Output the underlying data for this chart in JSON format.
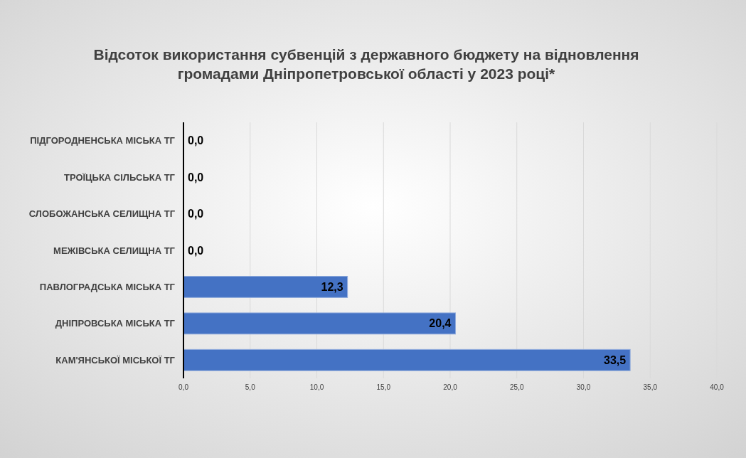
{
  "chart_data": {
    "type": "bar",
    "orientation": "horizontal",
    "title": "Відсоток використання субвенцій з державного бюджету на відновлення громадами Дніпропетровської області у 2023 році*",
    "categories": [
      "ПІДГОРОДНЕНСЬКА МІСЬКА ТГ",
      "ТРОЇЦЬКА СІЛЬСЬКА ТГ",
      "СЛОБОЖАНСЬКА СЕЛИЩНА ТГ",
      "МЕЖІВСЬКА СЕЛИЩНА ТГ",
      "ПАВЛОГРАДСЬКА МІСЬКА ТГ",
      "ДНІПРОВСЬКА МІСЬКА ТГ",
      "КАМ'ЯНСЬКОЇ МІСЬКОЇ ТГ"
    ],
    "values": [
      0,
      0,
      0,
      0,
      12.3,
      20.4,
      33.5
    ],
    "value_labels": [
      "0,0",
      "0,0",
      "0,0",
      "0,0",
      "12,3",
      "20,4",
      "33,5"
    ],
    "color": "#4472c4",
    "xlim": [
      0,
      40
    ],
    "xticks": [
      {
        "value": 0,
        "label": "0,0"
      },
      {
        "value": 5,
        "label": "5,0"
      },
      {
        "value": 10,
        "label": "10,0"
      },
      {
        "value": 15,
        "label": "15,0"
      },
      {
        "value": 20,
        "label": "20,0"
      },
      {
        "value": 25,
        "label": "25,0"
      },
      {
        "value": 30,
        "label": "30,0"
      },
      {
        "value": 35,
        "label": "35,0"
      },
      {
        "value": 40,
        "label": "40,0"
      }
    ],
    "grid": "x"
  }
}
